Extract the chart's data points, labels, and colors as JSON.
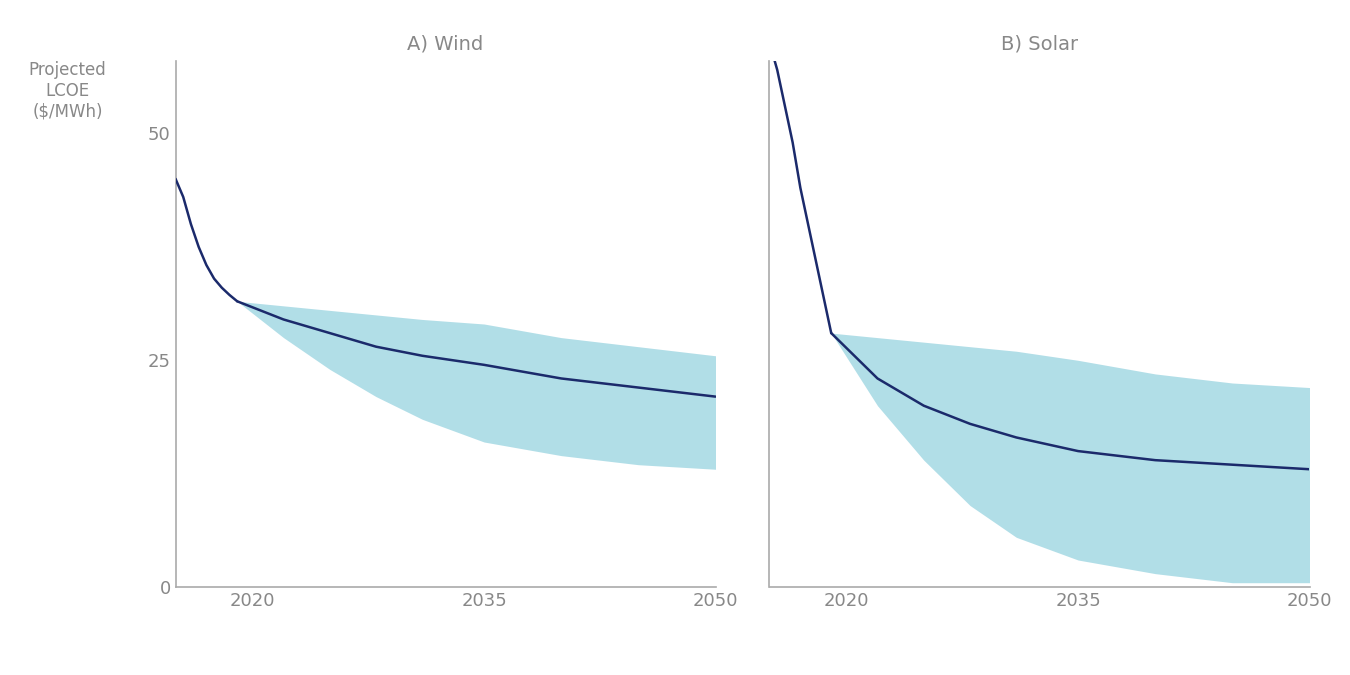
{
  "wind": {
    "hist_years": [
      2015,
      2015.5,
      2016,
      2016.5,
      2017,
      2017.5,
      2018,
      2018.5,
      2019
    ],
    "hist_values": [
      45,
      43,
      40,
      37.5,
      35.5,
      34,
      33,
      32.2,
      31.5
    ],
    "proj_years": [
      2019,
      2022,
      2025,
      2028,
      2031,
      2035,
      2040,
      2045,
      2050
    ],
    "proj_center": [
      31.5,
      29.5,
      28.0,
      26.5,
      25.5,
      24.5,
      23.0,
      22.0,
      21.0
    ],
    "proj_upper": [
      31.5,
      31.0,
      30.5,
      30.0,
      29.5,
      29.0,
      27.5,
      26.5,
      25.5
    ],
    "proj_lower": [
      31.5,
      27.5,
      24.0,
      21.0,
      18.5,
      16.0,
      14.5,
      13.5,
      13.0
    ],
    "title": "A) Wind"
  },
  "solar": {
    "hist_years": [
      2015,
      2015.5,
      2016,
      2016.5,
      2017,
      2017.5,
      2018,
      2018.5,
      2019
    ],
    "hist_values": [
      60,
      57,
      53,
      49,
      44,
      40,
      36,
      32,
      28
    ],
    "proj_years": [
      2019,
      2022,
      2025,
      2028,
      2031,
      2035,
      2040,
      2045,
      2050
    ],
    "proj_center": [
      28,
      23,
      20,
      18,
      16.5,
      15.0,
      14.0,
      13.5,
      13.0
    ],
    "proj_upper": [
      28,
      27.5,
      27.0,
      26.5,
      26.0,
      25.0,
      23.5,
      22.5,
      22.0
    ],
    "proj_lower": [
      28,
      20,
      14,
      9,
      5.5,
      3.0,
      1.5,
      0.5,
      0.5
    ],
    "title": "B) Solar"
  },
  "ylim": [
    0,
    58
  ],
  "yticks": [
    0,
    25,
    50
  ],
  "xticks": [
    2020,
    2035,
    2050
  ],
  "xlim": [
    2015,
    2050
  ],
  "fill_color": "#7EC8D8",
  "fill_alpha": 0.6,
  "line_color": "#1B2A6B",
  "line_width": 1.8,
  "axis_color": "#aaaaaa",
  "tick_color": "#888888",
  "label_color": "#888888",
  "ylabel": "Projected\nLCOE\n($/MWh)",
  "fig_bg": "#ffffff"
}
